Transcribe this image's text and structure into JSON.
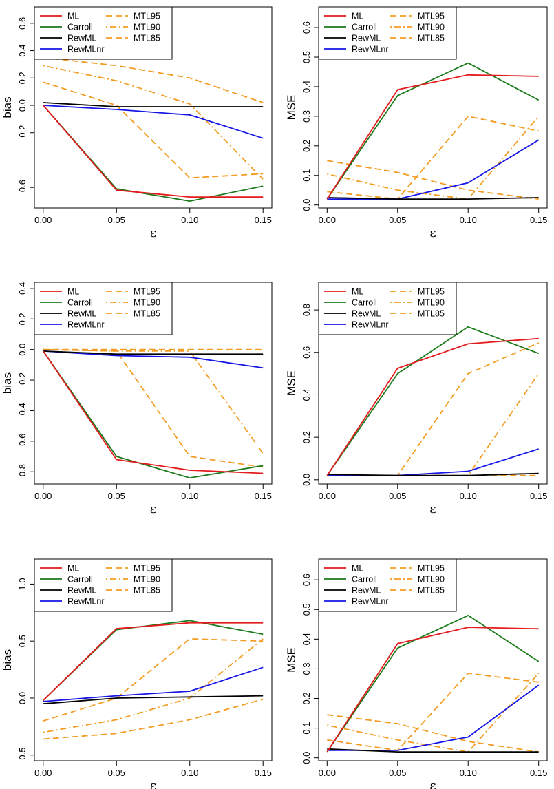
{
  "legend": {
    "entries": [
      {
        "name": "ML",
        "color": "#e41a1c",
        "dash": "solid"
      },
      {
        "name": "Carroll",
        "color": "#1b7a1b",
        "dash": "solid"
      },
      {
        "name": "RewML",
        "color": "#000000",
        "dash": "solid"
      },
      {
        "name": "RewMLnr",
        "color": "#1515e6",
        "dash": "solid"
      },
      {
        "name": "MTL95",
        "color": "#f39c22",
        "dash": "dashed"
      },
      {
        "name": "MTL90",
        "color": "#f39c22",
        "dash": "dotdash"
      },
      {
        "name": "MTL85",
        "color": "#f39c22",
        "dash": "dashed"
      }
    ]
  },
  "chart_data": [
    {
      "type": "line",
      "panel": "row1-left",
      "x": [
        0.0,
        0.05,
        0.1,
        0.15
      ],
      "xticks": [
        "0.00",
        "0.05",
        "0.10",
        "0.15"
      ],
      "xlabel": "ε",
      "ylabel": "bias",
      "ylim": [
        -0.75,
        0.72
      ],
      "yticks": [
        -0.6,
        -0.2,
        0.0,
        0.2,
        0.4,
        0.6
      ],
      "yticklabels": [
        "-0.6",
        "-0.2",
        "0.0",
        "0.2",
        "0.4",
        "0.6"
      ],
      "series": [
        {
          "name": "ML",
          "values": [
            0.0,
            -0.62,
            -0.67,
            -0.67
          ]
        },
        {
          "name": "Carroll",
          "values": [
            0.0,
            -0.61,
            -0.7,
            -0.59
          ]
        },
        {
          "name": "RewML",
          "values": [
            0.02,
            -0.01,
            -0.01,
            -0.01
          ]
        },
        {
          "name": "RewMLnr",
          "values": [
            0.0,
            -0.03,
            -0.07,
            -0.24
          ]
        },
        {
          "name": "MTL95",
          "values": [
            0.17,
            0.0,
            -0.53,
            -0.5
          ]
        },
        {
          "name": "MTL90",
          "values": [
            0.29,
            0.18,
            0.01,
            -0.54
          ]
        },
        {
          "name": "MTL85",
          "values": [
            0.35,
            0.29,
            0.2,
            0.02
          ]
        }
      ]
    },
    {
      "type": "line",
      "panel": "row1-right",
      "x": [
        0.0,
        0.05,
        0.1,
        0.15
      ],
      "xticks": [
        "0.00",
        "0.05",
        "0.10",
        "0.15"
      ],
      "xlabel": "ε",
      "ylabel": "MSE",
      "ylim": [
        -0.01,
        0.67
      ],
      "yticks": [
        0.0,
        0.1,
        0.2,
        0.3,
        0.4,
        0.5,
        0.6
      ],
      "yticklabels": [
        "0.0",
        "0.1",
        "0.2",
        "0.3",
        "0.4",
        "0.5",
        "0.6"
      ],
      "series": [
        {
          "name": "ML",
          "values": [
            0.02,
            0.39,
            0.44,
            0.435
          ]
        },
        {
          "name": "Carroll",
          "values": [
            0.02,
            0.37,
            0.48,
            0.355
          ]
        },
        {
          "name": "RewML",
          "values": [
            0.025,
            0.02,
            0.02,
            0.025
          ]
        },
        {
          "name": "RewMLnr",
          "values": [
            0.02,
            0.02,
            0.075,
            0.22
          ]
        },
        {
          "name": "MTL95",
          "values": [
            0.045,
            0.02,
            0.3,
            0.25
          ]
        },
        {
          "name": "MTL90",
          "values": [
            0.105,
            0.05,
            0.02,
            0.3
          ]
        },
        {
          "name": "MTL85",
          "values": [
            0.15,
            0.11,
            0.05,
            0.02
          ]
        }
      ]
    },
    {
      "type": "line",
      "panel": "row2-left",
      "x": [
        0.0,
        0.05,
        0.1,
        0.15
      ],
      "xticks": [
        "0.00",
        "0.05",
        "0.10",
        "0.15"
      ],
      "xlabel": "ε",
      "ylabel": "bias",
      "ylim": [
        -0.88,
        0.44
      ],
      "yticks": [
        -0.8,
        -0.6,
        -0.4,
        -0.2,
        0.0,
        0.2,
        0.4
      ],
      "yticklabels": [
        "-0.8",
        "-0.6",
        "-0.4",
        "-0.2",
        "0.0",
        "0.2",
        "0.4"
      ],
      "series": [
        {
          "name": "ML",
          "values": [
            -0.01,
            -0.72,
            -0.79,
            -0.81
          ]
        },
        {
          "name": "Carroll",
          "values": [
            -0.01,
            -0.7,
            -0.84,
            -0.76
          ]
        },
        {
          "name": "RewML",
          "values": [
            -0.01,
            -0.03,
            -0.03,
            -0.03
          ]
        },
        {
          "name": "RewMLnr",
          "values": [
            -0.01,
            -0.04,
            -0.05,
            -0.12
          ]
        },
        {
          "name": "MTL95",
          "values": [
            0.0,
            -0.01,
            -0.7,
            -0.77
          ]
        },
        {
          "name": "MTL90",
          "values": [
            0.0,
            -0.01,
            -0.01,
            -0.68
          ]
        },
        {
          "name": "MTL85",
          "values": [
            0.0,
            0.0,
            0.0,
            0.0
          ]
        }
      ]
    },
    {
      "type": "line",
      "panel": "row2-right",
      "x": [
        0.0,
        0.05,
        0.1,
        0.15
      ],
      "xticks": [
        "0.00",
        "0.05",
        "0.10",
        "0.15"
      ],
      "xlabel": "ε",
      "ylabel": "MSE",
      "ylim": [
        -0.02,
        0.93
      ],
      "yticks": [
        0.0,
        0.2,
        0.4,
        0.6,
        0.8
      ],
      "yticklabels": [
        "0.0",
        "0.2",
        "0.4",
        "0.6",
        "0.8"
      ],
      "series": [
        {
          "name": "ML",
          "values": [
            0.02,
            0.525,
            0.64,
            0.665
          ]
        },
        {
          "name": "Carroll",
          "values": [
            0.02,
            0.5,
            0.72,
            0.595
          ]
        },
        {
          "name": "RewML",
          "values": [
            0.025,
            0.02,
            0.02,
            0.03
          ]
        },
        {
          "name": "RewMLnr",
          "values": [
            0.02,
            0.02,
            0.04,
            0.145
          ]
        },
        {
          "name": "MTL95",
          "values": [
            0.02,
            0.02,
            0.5,
            0.645
          ]
        },
        {
          "name": "MTL90",
          "values": [
            0.02,
            0.02,
            0.02,
            0.5
          ]
        },
        {
          "name": "MTL85",
          "values": [
            0.02,
            0.02,
            0.02,
            0.02
          ]
        }
      ]
    },
    {
      "type": "line",
      "panel": "row3-left",
      "x": [
        0.0,
        0.05,
        0.1,
        0.15
      ],
      "xticks": [
        "0.00",
        "0.05",
        "0.10",
        "0.15"
      ],
      "xlabel": "ε",
      "ylabel": "bias",
      "ylim": [
        -0.55,
        1.22
      ],
      "yticks": [
        -0.5,
        0.0,
        0.5,
        1.0
      ],
      "yticklabels": [
        "-0.5",
        "0.0",
        "0.5",
        "1.0"
      ],
      "series": [
        {
          "name": "ML",
          "values": [
            -0.02,
            0.61,
            0.66,
            0.66
          ]
        },
        {
          "name": "Carroll",
          "values": [
            -0.02,
            0.6,
            0.68,
            0.56
          ]
        },
        {
          "name": "RewML",
          "values": [
            -0.05,
            0.0,
            0.01,
            0.02
          ]
        },
        {
          "name": "RewMLnr",
          "values": [
            -0.03,
            0.02,
            0.06,
            0.27
          ]
        },
        {
          "name": "MTL95",
          "values": [
            -0.2,
            0.0,
            0.52,
            0.5
          ]
        },
        {
          "name": "MTL90",
          "values": [
            -0.3,
            -0.19,
            0.0,
            0.52
          ]
        },
        {
          "name": "MTL85",
          "values": [
            -0.36,
            -0.31,
            -0.19,
            -0.01
          ]
        }
      ]
    },
    {
      "type": "line",
      "panel": "row3-right",
      "x": [
        0.0,
        0.05,
        0.1,
        0.15
      ],
      "xticks": [
        "0.00",
        "0.05",
        "0.10",
        "0.15"
      ],
      "xlabel": "ε",
      "ylabel": "MSE",
      "ylim": [
        -0.01,
        0.67
      ],
      "yticks": [
        0.0,
        0.1,
        0.2,
        0.3,
        0.4,
        0.5,
        0.6
      ],
      "yticklabels": [
        "0.0",
        "0.1",
        "0.2",
        "0.3",
        "0.4",
        "0.5",
        "0.6"
      ],
      "series": [
        {
          "name": "ML",
          "values": [
            0.02,
            0.385,
            0.44,
            0.435
          ]
        },
        {
          "name": "Carroll",
          "values": [
            0.02,
            0.37,
            0.48,
            0.325
          ]
        },
        {
          "name": "RewML",
          "values": [
            0.03,
            0.02,
            0.02,
            0.02
          ]
        },
        {
          "name": "RewMLnr",
          "values": [
            0.025,
            0.025,
            0.07,
            0.245
          ]
        },
        {
          "name": "MTL95",
          "values": [
            0.06,
            0.025,
            0.285,
            0.255
          ]
        },
        {
          "name": "MTL90",
          "values": [
            0.11,
            0.06,
            0.02,
            0.285
          ]
        },
        {
          "name": "MTL85",
          "values": [
            0.145,
            0.115,
            0.055,
            0.02
          ]
        }
      ]
    }
  ]
}
